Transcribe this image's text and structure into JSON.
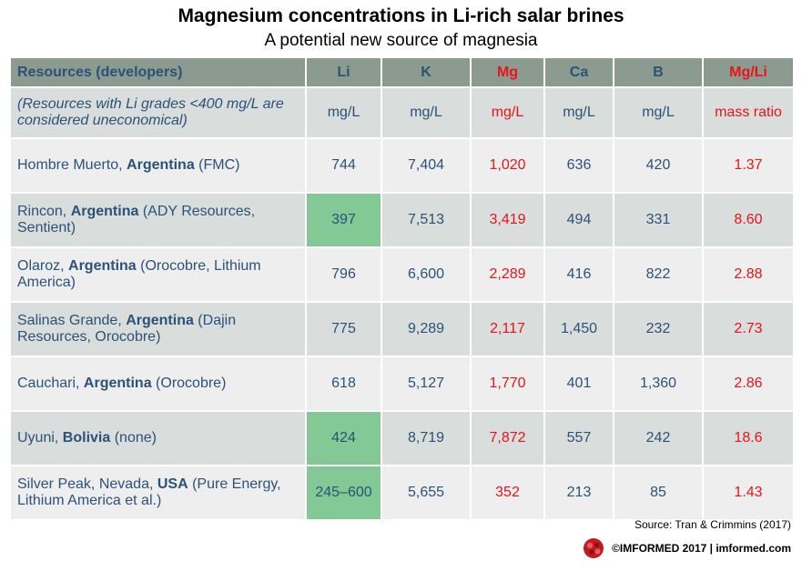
{
  "title": "Magnesium concentrations in Li-rich salar brines",
  "subtitle": "A potential new source of magnesia",
  "chart_data": {
    "type": "table",
    "columns": [
      "Resources (developers)",
      "Li",
      "K",
      "Mg",
      "Ca",
      "B",
      "Mg/Li"
    ],
    "units": {
      "note": "(Resources with Li grades <400 mg/L are considered uneconomical)",
      "values": [
        "mg/L",
        "mg/L",
        "mg/L",
        "mg/L",
        "mg/L",
        "mass ratio"
      ]
    },
    "rows": [
      {
        "pre": "Hombre Muerto, ",
        "country": "Argentina",
        "post": " (FMC)",
        "Li": "744",
        "K": "7,404",
        "Mg": "1,020",
        "Ca": "636",
        "B": "420",
        "MgLi": "1.37",
        "li_highlight": false
      },
      {
        "pre": "Rincon, ",
        "country": "Argentina",
        "post": " (ADY Resources, Sentient)",
        "Li": "397",
        "K": "7,513",
        "Mg": "3,419",
        "Ca": "494",
        "B": "331",
        "MgLi": "8.60",
        "li_highlight": true
      },
      {
        "pre": "Olaroz, ",
        "country": "Argentina",
        "post": " (Orocobre, Lithium America)",
        "Li": "796",
        "K": "6,600",
        "Mg": "2,289",
        "Ca": "416",
        "B": "822",
        "MgLi": "2.88",
        "li_highlight": false
      },
      {
        "pre": "Salinas Grande, ",
        "country": "Argentina",
        "post": " (Dajin Resources, Orocobre)",
        "Li": "775",
        "K": "9,289",
        "Mg": "2,117",
        "Ca": "1,450",
        "B": "232",
        "MgLi": "2.73",
        "li_highlight": false
      },
      {
        "pre": "Cauchari, ",
        "country": "Argentina",
        "post": " (Orocobre)",
        "Li": "618",
        "K": "5,127",
        "Mg": "1,770",
        "Ca": "401",
        "B": "1,360",
        "MgLi": "2.86",
        "li_highlight": false
      },
      {
        "pre": "Uyuni, ",
        "country": "Bolivia",
        "post": " (none)",
        "Li": "424",
        "K": "8,719",
        "Mg": "7,872",
        "Ca": "557",
        "B": "242",
        "MgLi": "18.6",
        "li_highlight": true
      },
      {
        "pre": "Silver Peak, Nevada, ",
        "country": "USA",
        "post": " (Pure Energy, Lithium America et al.)",
        "Li": "245–600",
        "K": "5,655",
        "Mg": "352",
        "Ca": "213",
        "B": "85",
        "MgLi": "1.43",
        "li_highlight": true
      }
    ]
  },
  "source": "Source: Tran & Crimmins (2017)",
  "footer": "©IMFORMED  2017  | imformed.com",
  "colors": {
    "header_bg": "#8b9b8f",
    "text_blue": "#2b5278",
    "accent_red": "#e8141a",
    "highlight_green": "#82c995",
    "row_light": "#eeeeee",
    "row_dark": "#d9dddb"
  }
}
